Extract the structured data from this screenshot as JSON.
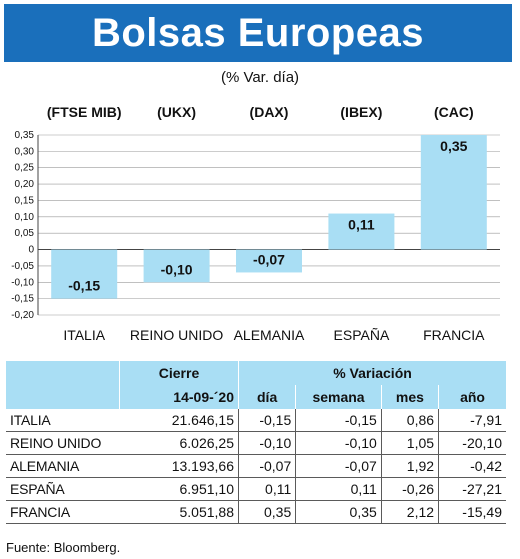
{
  "header": {
    "title": "Bolsas Europeas",
    "subtitle": "(% Var. día)"
  },
  "chart_data": {
    "type": "bar",
    "codes": [
      "(FTSE MIB)",
      "(UKX)",
      "(DAX)",
      "(IBEX)",
      "(CAC)"
    ],
    "categories": [
      "ITALIA",
      "REINO UNIDO",
      "ALEMANIA",
      "ESPAÑA",
      "FRANCIA"
    ],
    "values": [
      -0.15,
      -0.1,
      -0.07,
      0.11,
      0.35
    ],
    "value_labels": [
      "-0,15",
      "-0,10",
      "-0,07",
      "0,11",
      "0,35"
    ],
    "y_ticks": [
      "0,35",
      "0,30",
      "0,25",
      "0,20",
      "0,15",
      "0,10",
      "0,05",
      "0",
      "-0,05",
      "-0,10",
      "-0,15",
      "-0,20"
    ],
    "ylim": [
      -0.2,
      0.35
    ],
    "bar_color": "#a9def4",
    "grid": true
  },
  "table": {
    "group_headers": {
      "cierre": "Cierre",
      "variacion": "% Variación"
    },
    "sub_headers": [
      "14-09-´20",
      "día",
      "semana",
      "mes",
      "año"
    ],
    "rows": [
      [
        "ITALIA",
        "21.646,15",
        "-0,15",
        "-0,15",
        "0,86",
        "-7,91"
      ],
      [
        "REINO UNIDO",
        "6.026,25",
        "-0,10",
        "-0,10",
        "1,05",
        "-20,10"
      ],
      [
        "ALEMANIA",
        "13.193,66",
        "-0,07",
        "-0,07",
        "1,92",
        "-0,42"
      ],
      [
        "ESPAÑA",
        "6.951,10",
        "0,11",
        "0,11",
        "-0,26",
        "-27,21"
      ],
      [
        "FRANCIA",
        "5.051,88",
        "0,35",
        "0,35",
        "2,12",
        "-15,49"
      ]
    ]
  },
  "source": "Fuente: Bloomberg."
}
